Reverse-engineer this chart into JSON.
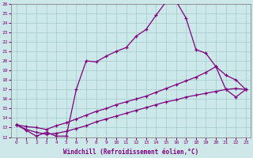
{
  "xlabel": "Windchill (Refroidissement éolien,°C)",
  "xlim": [
    -0.5,
    23.5
  ],
  "ylim": [
    12,
    26
  ],
  "xticks": [
    0,
    1,
    2,
    3,
    4,
    5,
    6,
    7,
    8,
    9,
    10,
    11,
    12,
    13,
    14,
    15,
    16,
    17,
    18,
    19,
    20,
    21,
    22,
    23
  ],
  "yticks": [
    12,
    13,
    14,
    15,
    16,
    17,
    18,
    19,
    20,
    21,
    22,
    23,
    24,
    25,
    26
  ],
  "bg_color": "#cce8e8",
  "line_color": "#800080",
  "grid_color": "#aacfcf",
  "line1_x": [
    0,
    1,
    2,
    3,
    4,
    5,
    6,
    7,
    8,
    9,
    10,
    11,
    12,
    13,
    14,
    15,
    16,
    17,
    18,
    19,
    20,
    21,
    22,
    23
  ],
  "line1_y": [
    13.3,
    12.7,
    12.1,
    12.5,
    12.1,
    12.1,
    17.0,
    20.0,
    19.9,
    20.5,
    21.0,
    21.4,
    22.6,
    23.3,
    24.8,
    26.2,
    26.3,
    24.5,
    21.2,
    20.8,
    19.4,
    17.0,
    16.2,
    17.0
  ],
  "line2_x": [
    0,
    1,
    2,
    3,
    4,
    5,
    6,
    7,
    8,
    9,
    10,
    11,
    12,
    13,
    14,
    15,
    16,
    17,
    18,
    19,
    20,
    21,
    22,
    23
  ],
  "line2_y": [
    13.3,
    13.1,
    13.0,
    12.8,
    13.2,
    13.5,
    13.9,
    14.3,
    14.7,
    15.0,
    15.4,
    15.7,
    16.0,
    16.3,
    16.7,
    17.1,
    17.5,
    17.9,
    18.3,
    18.8,
    19.4,
    18.5,
    18.0,
    17.0
  ],
  "line3_x": [
    0,
    1,
    2,
    3,
    4,
    5,
    6,
    7,
    8,
    9,
    10,
    11,
    12,
    13,
    14,
    15,
    16,
    17,
    18,
    19,
    20,
    21,
    22,
    23
  ],
  "line3_y": [
    13.3,
    12.8,
    12.5,
    12.3,
    12.4,
    12.6,
    12.9,
    13.2,
    13.6,
    13.9,
    14.2,
    14.5,
    14.8,
    15.1,
    15.4,
    15.7,
    15.9,
    16.2,
    16.4,
    16.6,
    16.8,
    17.0,
    17.1,
    17.0
  ]
}
